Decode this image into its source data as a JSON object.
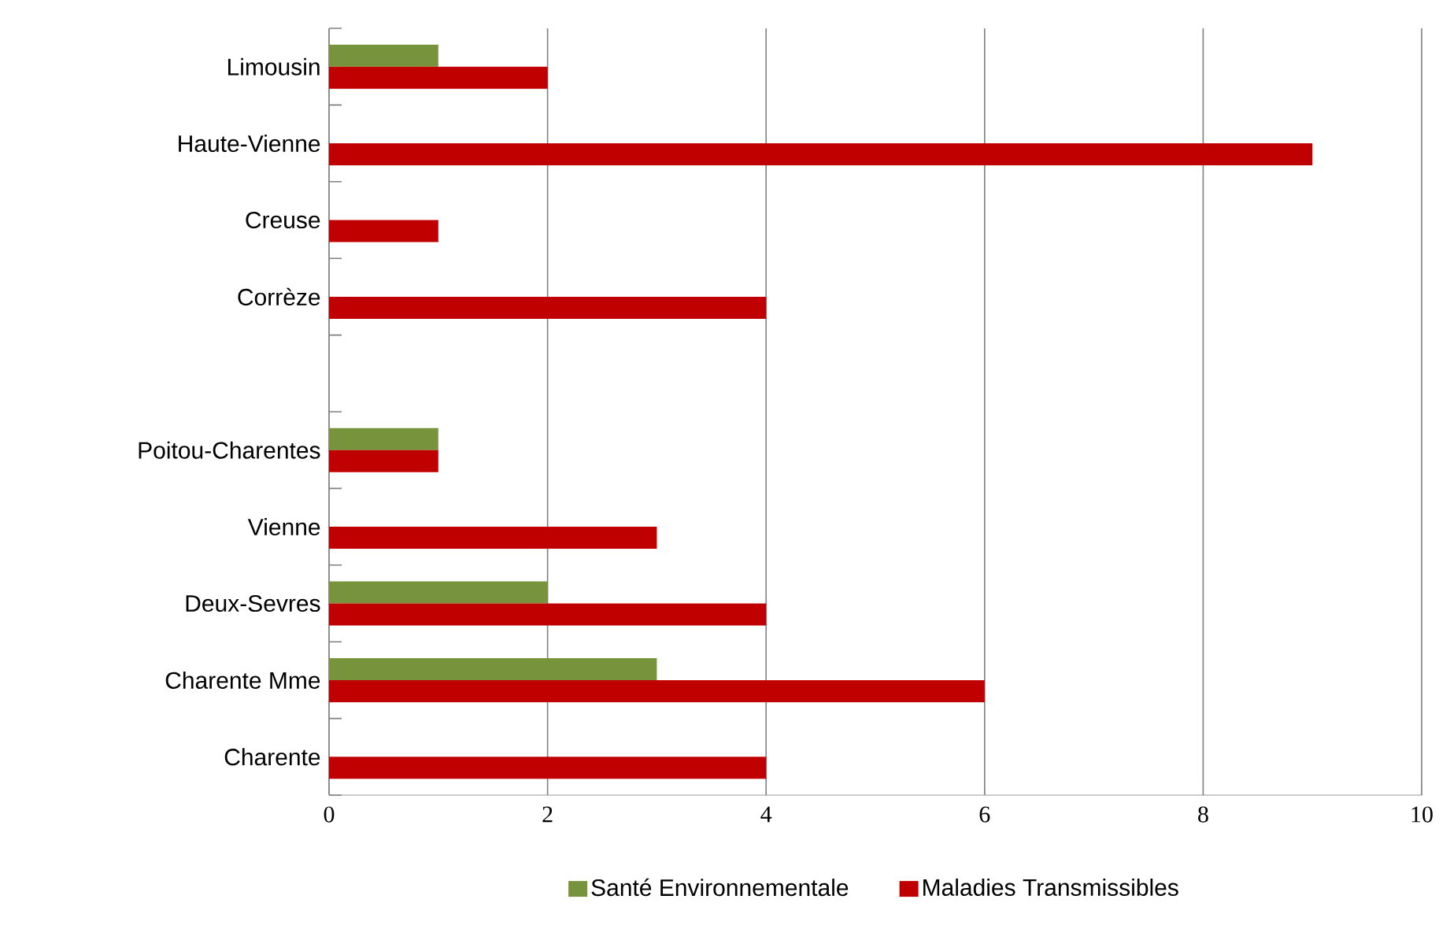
{
  "chart_data": {
    "type": "bar",
    "orientation": "horizontal",
    "categories": [
      "Limousin",
      "Haute-Vienne",
      "Creuse",
      "Corrèze",
      null,
      "Poitou-Charentes",
      "Vienne",
      "Deux-Sevres",
      "Charente Mme",
      "Charente"
    ],
    "series": [
      {
        "name": "Santé Environnementale",
        "color": "#77933c",
        "values": [
          1,
          null,
          null,
          null,
          null,
          1,
          null,
          2,
          3,
          null
        ]
      },
      {
        "name": "Maladies Transmissibles",
        "color": "#c00000",
        "values": [
          2,
          9,
          1,
          4,
          null,
          1,
          3,
          4,
          6,
          4
        ]
      }
    ],
    "xlim": [
      0,
      10
    ],
    "xticks": [
      0,
      2,
      4,
      6,
      8,
      10
    ],
    "grid": "x",
    "legend": "bottom"
  }
}
